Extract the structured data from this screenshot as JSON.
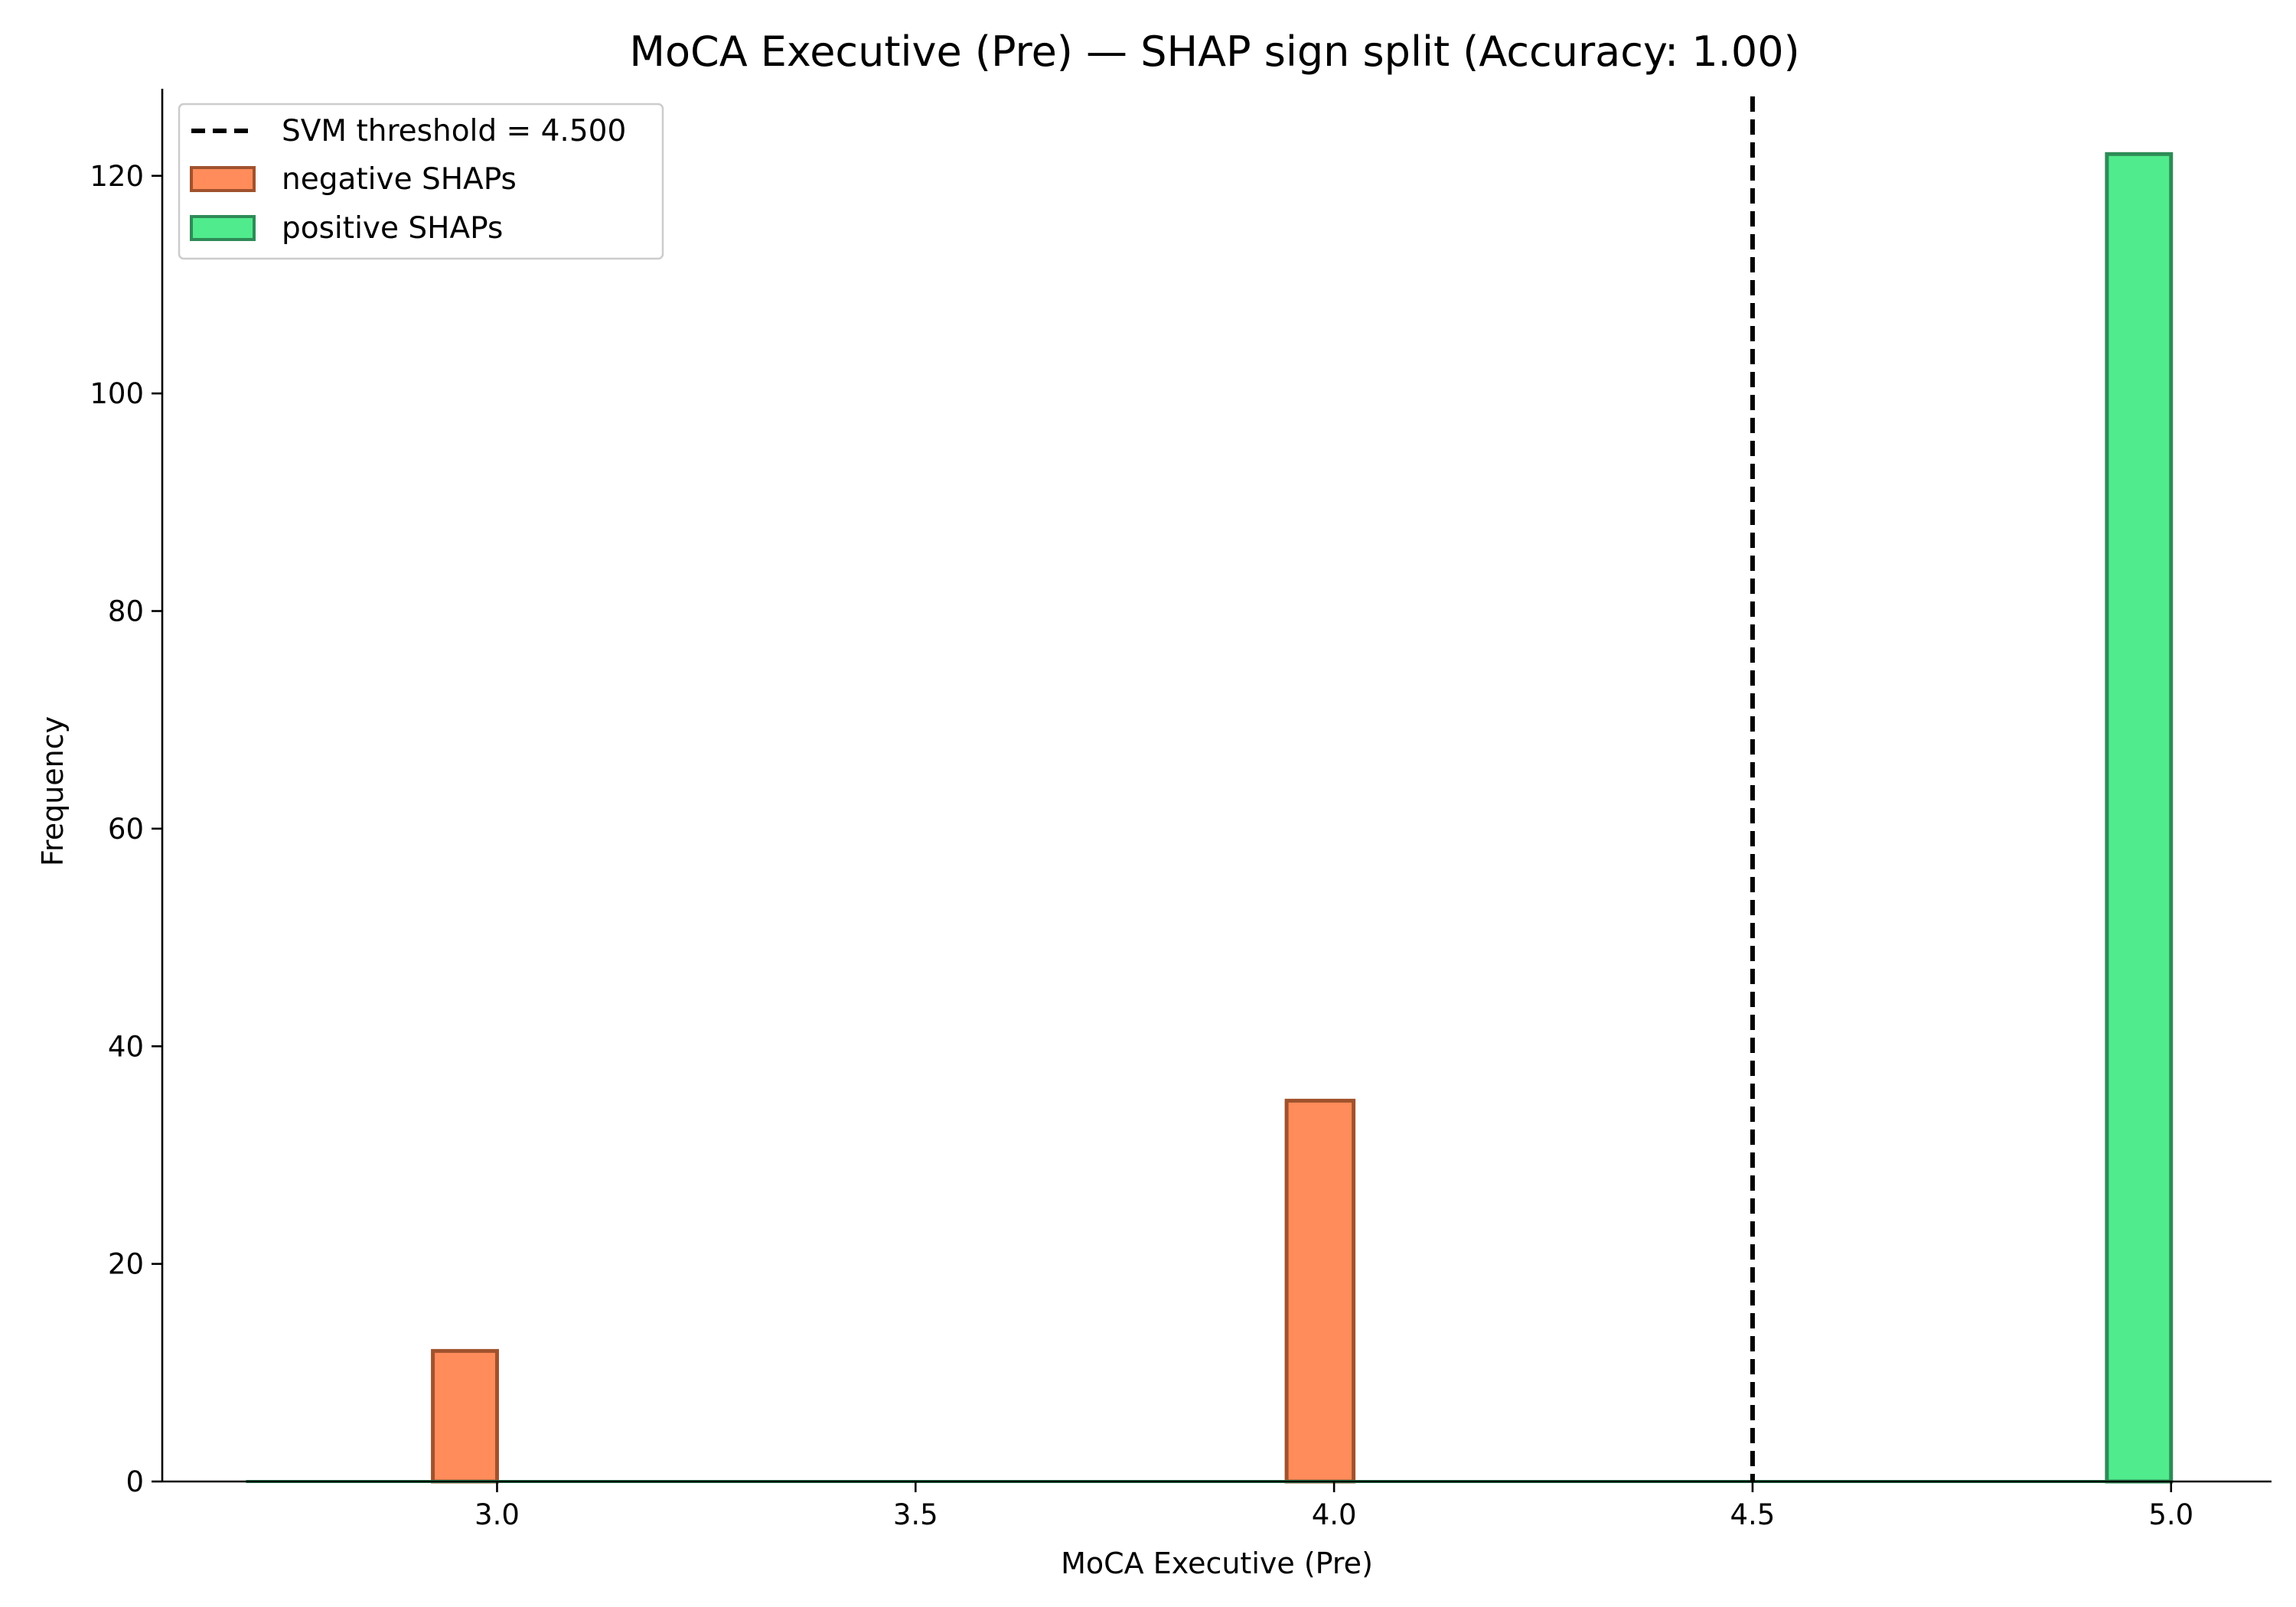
{
  "chart_data": {
    "type": "bar",
    "title": "MoCA Executive (Pre) — SHAP sign split (Accuracy: 1.00)",
    "xlabel": "MoCA Executive (Pre)",
    "ylabel": "Frequency",
    "xlim": [
      2.6,
      5.12
    ],
    "ylim": [
      0,
      128
    ],
    "x_ticks": [
      3.0,
      3.5,
      4.0,
      4.5,
      5.0
    ],
    "x_tick_labels": [
      "3.0",
      "3.5",
      "4.0",
      "4.5",
      "5.0"
    ],
    "y_ticks": [
      0,
      20,
      40,
      60,
      80,
      100,
      120
    ],
    "y_tick_labels": [
      "0",
      "20",
      "40",
      "60",
      "80",
      "100",
      "120"
    ],
    "bin_range": [
      2.7,
      5.0
    ],
    "bin_width": 0.0767,
    "grid": false,
    "legend_position": "top-left",
    "threshold": {
      "label": "SVM threshold = 4.500",
      "value": 4.5,
      "color": "#000000",
      "style": "dashed"
    },
    "series": [
      {
        "name": "negative SHAPs",
        "fill": "#ff8c5a",
        "edge": "#a0522d",
        "bins": [
          {
            "x_start": 2.9233,
            "x_end": 3.0,
            "count": 12
          },
          {
            "x_start": 3.9433,
            "x_end": 4.0233,
            "count": 35
          }
        ]
      },
      {
        "name": "positive SHAPs",
        "fill": "#50eb8c",
        "edge": "#2e8b57",
        "bins": [
          {
            "x_start": 4.9233,
            "x_end": 5.0,
            "count": 122
          }
        ]
      }
    ]
  }
}
